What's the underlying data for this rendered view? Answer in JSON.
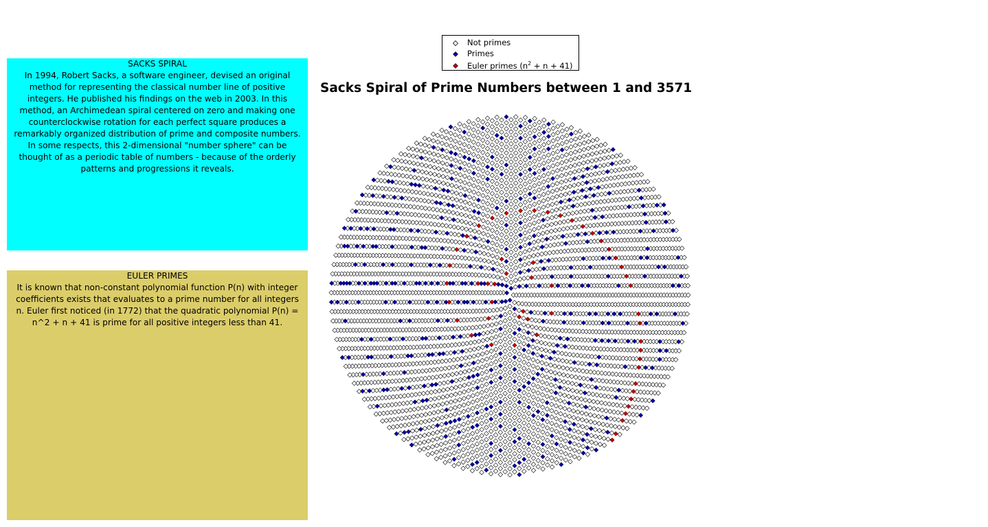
{
  "panels": {
    "sacks": {
      "title": "SACKS SPIRAL",
      "body": "In 1994, Robert Sacks, a software engineer, devised an original method for representing the classical number line of positive integers. He published his findings on the web in 2003. In this method, an Archimedean spiral centered on zero and making one counterclockwise rotation for each perfect square produces a remarkably organized distribution of prime and composite numbers. In some respects, this 2-dimensional \"number sphere\" can be thought of as a periodic table of numbers - because of the orderly patterns and progressions it reveals.",
      "background": "#00ffff"
    },
    "euler": {
      "title": "EULER PRIMES",
      "body": "It is known that non-constant polynomial function P(n) with integer coefficients exists that evaluates to a prime number for all integers n. Euler first noticed (in 1772) that the quadratic polynomial P(n) = n^2 + n + 41 is prime for all positive integers less than 41.",
      "background": "#dccd6b"
    }
  },
  "chart_data": {
    "type": "scatter",
    "title": "Sacks Spiral of Prime Numbers between 1 and 3571",
    "n_min": 1,
    "n_max": 3571,
    "spiral": "Archimedean spiral, one counterclockwise rotation per perfect square (r = sqrt(n), theta = 2*pi*sqrt(n))",
    "euler_polynomial": "n^2 + n + 41",
    "series": [
      {
        "key": "not_primes",
        "name": "Not primes",
        "marker": "diamond-open",
        "color": "#000000"
      },
      {
        "key": "primes",
        "name": "Primes",
        "marker": "diamond-filled",
        "color": "#0000a0"
      },
      {
        "key": "euler",
        "name": "Euler primes (n",
        "name_sup": "2",
        "name_tail": " + n + 41)",
        "marker": "diamond-filled",
        "color": "#c00000"
      }
    ],
    "legend_position": "top-center",
    "axes_visible": false
  }
}
